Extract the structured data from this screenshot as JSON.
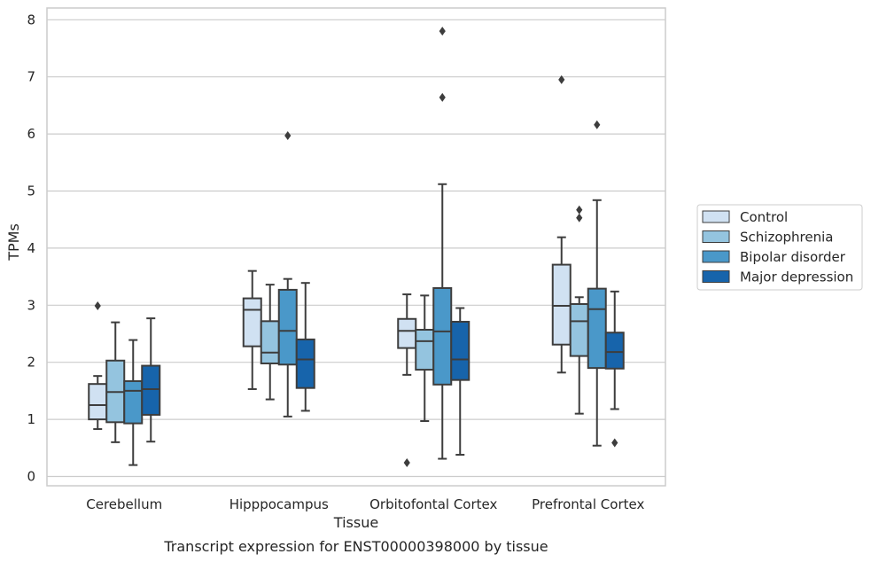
{
  "chart_data": {
    "type": "box",
    "title": "",
    "caption": "Transcript expression for ENST00000398000 by tissue",
    "xlabel": "Tissue",
    "ylabel": "TPMs",
    "ylim": [
      -0.15,
      8.2
    ],
    "yticks": [
      0,
      1,
      2,
      3,
      4,
      5,
      6,
      7,
      8
    ],
    "grid": true,
    "legend_position": "right",
    "categories": [
      "Cerebellum",
      "Hipppocampus",
      "Orbitofontal Cortex",
      "Prefrontal Cortex"
    ],
    "series": [
      {
        "name": "Control",
        "color": "#d0e1f2",
        "boxes": [
          {
            "whislo": 0.83,
            "q1": 1.0,
            "med": 1.25,
            "q3": 1.62,
            "whishi": 1.76,
            "fliers": [
              2.99
            ]
          },
          {
            "whislo": 1.53,
            "q1": 2.28,
            "med": 2.92,
            "q3": 3.12,
            "whishi": 3.6,
            "fliers": []
          },
          {
            "whislo": 1.78,
            "q1": 2.25,
            "med": 2.55,
            "q3": 2.76,
            "whishi": 3.19,
            "fliers": [
              0.24
            ]
          },
          {
            "whislo": 1.82,
            "q1": 2.31,
            "med": 2.99,
            "q3": 3.71,
            "whishi": 4.19,
            "fliers": [
              6.95
            ]
          }
        ]
      },
      {
        "name": "Schizophrenia",
        "color": "#94c4df",
        "boxes": [
          {
            "whislo": 0.6,
            "q1": 0.95,
            "med": 1.48,
            "q3": 2.03,
            "whishi": 2.7,
            "fliers": []
          },
          {
            "whislo": 1.35,
            "q1": 1.98,
            "med": 2.17,
            "q3": 2.72,
            "whishi": 3.36,
            "fliers": []
          },
          {
            "whislo": 0.97,
            "q1": 1.87,
            "med": 2.37,
            "q3": 2.57,
            "whishi": 3.17,
            "fliers": []
          },
          {
            "whislo": 1.1,
            "q1": 2.11,
            "med": 2.72,
            "q3": 3.02,
            "whishi": 3.14,
            "fliers": [
              4.53,
              4.67
            ]
          }
        ]
      },
      {
        "name": "Bipolar disorder",
        "color": "#4a98c9",
        "boxes": [
          {
            "whislo": 0.2,
            "q1": 0.93,
            "med": 1.5,
            "q3": 1.67,
            "whishi": 2.39,
            "fliers": []
          },
          {
            "whislo": 1.05,
            "q1": 1.96,
            "med": 2.55,
            "q3": 3.27,
            "whishi": 3.46,
            "fliers": [
              5.97
            ]
          },
          {
            "whislo": 0.31,
            "q1": 1.61,
            "med": 2.54,
            "q3": 3.3,
            "whishi": 5.12,
            "fliers": [
              6.64,
              7.8
            ]
          },
          {
            "whislo": 0.54,
            "q1": 1.9,
            "med": 2.93,
            "q3": 3.29,
            "whishi": 4.84,
            "fliers": [
              6.16
            ]
          }
        ]
      },
      {
        "name": "Major depression",
        "color": "#1764ab",
        "boxes": [
          {
            "whislo": 0.61,
            "q1": 1.08,
            "med": 1.53,
            "q3": 1.94,
            "whishi": 2.77,
            "fliers": []
          },
          {
            "whislo": 1.15,
            "q1": 1.55,
            "med": 2.05,
            "q3": 2.4,
            "whishi": 3.39,
            "fliers": []
          },
          {
            "whislo": 0.38,
            "q1": 1.69,
            "med": 2.05,
            "q3": 2.71,
            "whishi": 2.95,
            "fliers": []
          },
          {
            "whislo": 1.18,
            "q1": 1.89,
            "med": 2.18,
            "q3": 2.52,
            "whishi": 3.24,
            "fliers": [
              0.59
            ]
          }
        ]
      }
    ]
  }
}
